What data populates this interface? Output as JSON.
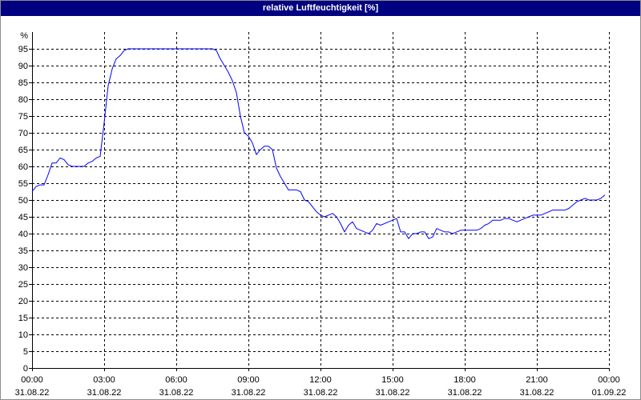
{
  "colors": {
    "title_bar": "#000080",
    "title_text": "#ffffff",
    "line": "#0000ff",
    "grid": "#000000",
    "axis": "#000000",
    "background": "#ffffff"
  },
  "chart_data": {
    "type": "line",
    "title": "relative Luftfeuchtigkeit [%]",
    "ylabel": "%",
    "ylim": [
      0,
      100
    ],
    "xlim": [
      "31.08.22 00:00",
      "01.09.22 00:00"
    ],
    "grid": true,
    "yticks": [
      0,
      5,
      10,
      15,
      20,
      25,
      30,
      35,
      40,
      45,
      50,
      55,
      60,
      65,
      70,
      75,
      80,
      85,
      90,
      95
    ],
    "xticks": [
      {
        "time": "00:00",
        "date": "31.08.22"
      },
      {
        "time": "03:00",
        "date": "31.08.22"
      },
      {
        "time": "06:00",
        "date": "31.08.22"
      },
      {
        "time": "09:00",
        "date": "31.08.22"
      },
      {
        "time": "12:00",
        "date": "31.08.22"
      },
      {
        "time": "15:00",
        "date": "31.08.22"
      },
      {
        "time": "18:00",
        "date": "31.08.22"
      },
      {
        "time": "21:00",
        "date": "31.08.22"
      },
      {
        "time": "00:00",
        "date": "01.09.22"
      }
    ],
    "series": [
      {
        "x": [
          "31.08.22 00:00",
          "31.08.22 00:10",
          "31.08.22 00:20",
          "31.08.22 00:30",
          "31.08.22 00:40",
          "31.08.22 00:50",
          "31.08.22 01:00",
          "31.08.22 01:10",
          "31.08.22 01:20",
          "31.08.22 01:30",
          "31.08.22 01:40",
          "31.08.22 01:50",
          "31.08.22 02:00",
          "31.08.22 02:10",
          "31.08.22 02:20",
          "31.08.22 02:30",
          "31.08.22 02:40",
          "31.08.22 02:50",
          "31.08.22 03:00",
          "31.08.22 03:10",
          "31.08.22 03:20",
          "31.08.22 03:30",
          "31.08.22 03:40",
          "31.08.22 03:50",
          "31.08.22 04:00",
          "31.08.22 04:10",
          "31.08.22 04:20",
          "31.08.22 04:30",
          "31.08.22 04:40",
          "31.08.22 04:50",
          "31.08.22 05:00",
          "31.08.22 05:10",
          "31.08.22 05:20",
          "31.08.22 05:30",
          "31.08.22 05:40",
          "31.08.22 05:50",
          "31.08.22 06:00",
          "31.08.22 06:10",
          "31.08.22 06:20",
          "31.08.22 06:30",
          "31.08.22 06:40",
          "31.08.22 06:50",
          "31.08.22 07:00",
          "31.08.22 07:10",
          "31.08.22 07:20",
          "31.08.22 07:30",
          "31.08.22 07:40",
          "31.08.22 07:50",
          "31.08.22 08:00",
          "31.08.22 08:10",
          "31.08.22 08:20",
          "31.08.22 08:30",
          "31.08.22 08:40",
          "31.08.22 08:50",
          "31.08.22 09:00",
          "31.08.22 09:10",
          "31.08.22 09:20",
          "31.08.22 09:30",
          "31.08.22 09:40",
          "31.08.22 09:50",
          "31.08.22 10:00",
          "31.08.22 10:10",
          "31.08.22 10:20",
          "31.08.22 10:30",
          "31.08.22 10:40",
          "31.08.22 10:50",
          "31.08.22 11:00",
          "31.08.22 11:10",
          "31.08.22 11:20",
          "31.08.22 11:30",
          "31.08.22 11:40",
          "31.08.22 11:50",
          "31.08.22 12:00",
          "31.08.22 12:10",
          "31.08.22 12:20",
          "31.08.22 12:30",
          "31.08.22 12:40",
          "31.08.22 12:50",
          "31.08.22 13:00",
          "31.08.22 13:10",
          "31.08.22 13:20",
          "31.08.22 13:30",
          "31.08.22 13:40",
          "31.08.22 13:50",
          "31.08.22 14:00",
          "31.08.22 14:10",
          "31.08.22 14:20",
          "31.08.22 14:30",
          "31.08.22 14:40",
          "31.08.22 14:50",
          "31.08.22 15:00",
          "31.08.22 15:10",
          "31.08.22 15:20",
          "31.08.22 15:30",
          "31.08.22 15:40",
          "31.08.22 15:50",
          "31.08.22 16:00",
          "31.08.22 16:10",
          "31.08.22 16:20",
          "31.08.22 16:30",
          "31.08.22 16:40",
          "31.08.22 16:50",
          "31.08.22 17:00",
          "31.08.22 17:10",
          "31.08.22 17:20",
          "31.08.22 17:30",
          "31.08.22 17:40",
          "31.08.22 17:50",
          "31.08.22 18:00",
          "31.08.22 18:10",
          "31.08.22 18:20",
          "31.08.22 18:30",
          "31.08.22 18:40",
          "31.08.22 18:50",
          "31.08.22 19:00",
          "31.08.22 19:10",
          "31.08.22 19:20",
          "31.08.22 19:30",
          "31.08.22 19:40",
          "31.08.22 19:50",
          "31.08.22 20:00",
          "31.08.22 20:10",
          "31.08.22 20:20",
          "31.08.22 20:30",
          "31.08.22 20:40",
          "31.08.22 20:50",
          "31.08.22 21:00",
          "31.08.22 21:10",
          "31.08.22 21:20",
          "31.08.22 21:30",
          "31.08.22 21:40",
          "31.08.22 21:50",
          "31.08.22 22:00",
          "31.08.22 22:10",
          "31.08.22 22:20",
          "31.08.22 22:30",
          "31.08.22 22:40",
          "31.08.22 22:50",
          "31.08.22 23:00",
          "31.08.22 23:10",
          "31.08.22 23:20",
          "31.08.22 23:30",
          "31.08.22 23:40",
          "31.08.22 23:50"
        ],
        "y": [
          52.5,
          54,
          54.5,
          54.5,
          57.5,
          61,
          61,
          62.5,
          62,
          60.5,
          60,
          60,
          60,
          60,
          61,
          61.5,
          62.5,
          63,
          73,
          84,
          89,
          92,
          93,
          94.5,
          95,
          95,
          95,
          95,
          95,
          95,
          95,
          95,
          95,
          95,
          95,
          95,
          95,
          95,
          95,
          95,
          95,
          95,
          95,
          95,
          95,
          95,
          94.5,
          92,
          90,
          88,
          85.5,
          82,
          75,
          70,
          69,
          67,
          63.5,
          65,
          66,
          66,
          65,
          59.5,
          57,
          55,
          53,
          53,
          53,
          52.5,
          50,
          49.5,
          48,
          46.5,
          45.5,
          45,
          45.5,
          46,
          45,
          43,
          40.5,
          42.5,
          43.5,
          41.5,
          41,
          40.5,
          40,
          41,
          43,
          42.5,
          43,
          43.5,
          44,
          44.5,
          40.5,
          40.5,
          38.5,
          40,
          40,
          40.5,
          40.5,
          38.5,
          39,
          41.5,
          41,
          40.5,
          40.5,
          40,
          40.5,
          41,
          41,
          41,
          41,
          41,
          41.5,
          42.5,
          43,
          44,
          44,
          44,
          44.5,
          44.5,
          44,
          43.5,
          44,
          44.5,
          45,
          45.5,
          45.5,
          45.5,
          46,
          46.5,
          47,
          47,
          47,
          47,
          47.5,
          48.5,
          49.5,
          50,
          50.5,
          50,
          50,
          50,
          50.5,
          51.5
        ]
      }
    ]
  }
}
